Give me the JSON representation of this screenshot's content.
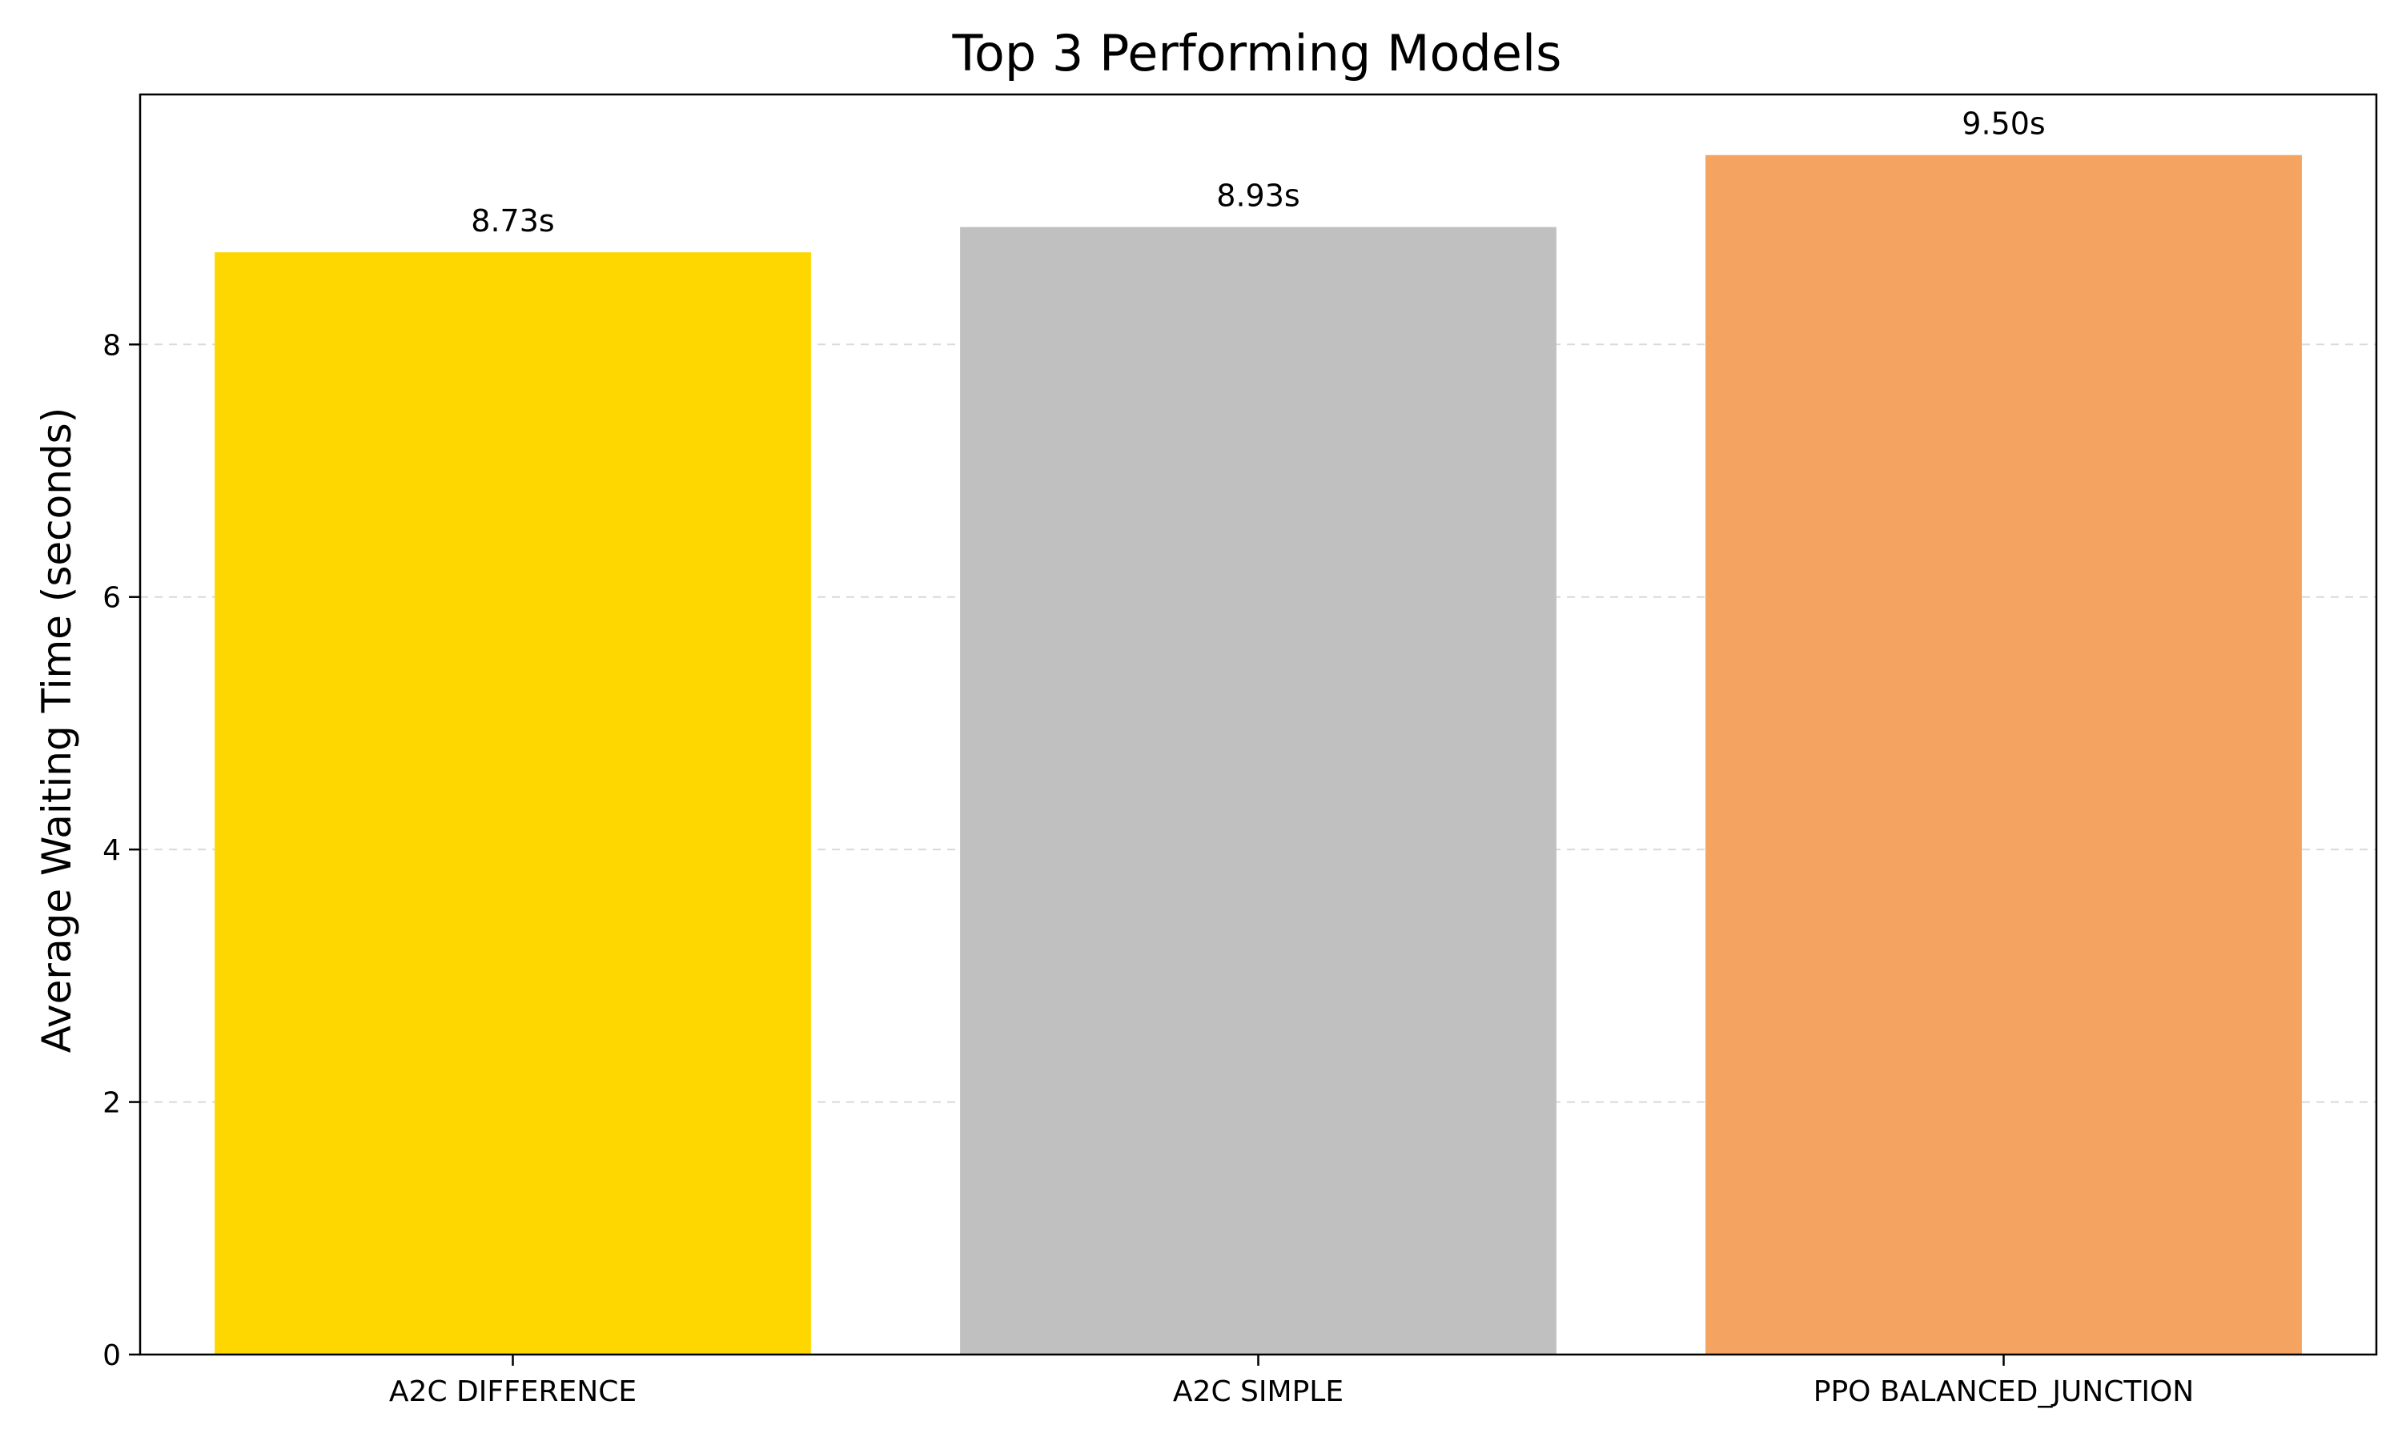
{
  "chart_data": {
    "type": "bar",
    "title": "Top 3 Performing Models",
    "xlabel": "",
    "ylabel": "Average Waiting Time (seconds)",
    "categories": [
      "A2C DIFFERENCE",
      "A2C SIMPLE",
      "PPO BALANCED_JUNCTION"
    ],
    "values": [
      8.73,
      8.93,
      9.5
    ],
    "value_labels": [
      "8.73s",
      "8.93s",
      "9.50s"
    ],
    "colors": [
      "#FFD700",
      "#C0C0C0",
      "#F4A460"
    ],
    "ylim": [
      0,
      9.98
    ],
    "yticks": [
      0,
      2,
      4,
      6,
      8
    ],
    "grid": "y-dashed",
    "legend": "none"
  }
}
